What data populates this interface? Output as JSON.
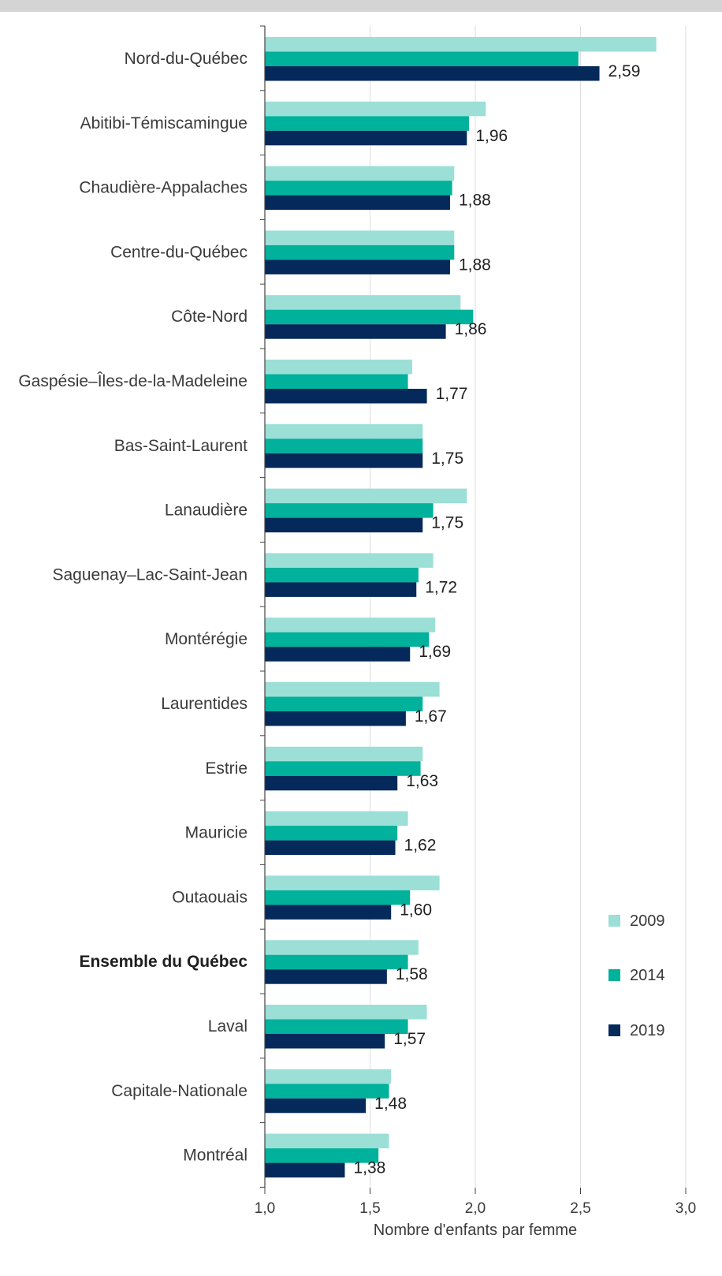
{
  "chart_data": {
    "type": "bar",
    "orientation": "horizontal",
    "xlabel": "Nombre d'enfants par femme",
    "xlim": [
      1.0,
      3.0
    ],
    "x_ticks": [
      "1,0",
      "1,5",
      "2,0",
      "2,5",
      "3,0"
    ],
    "grid": true,
    "legend_position": "bottom-right",
    "categories": [
      "Nord-du-Québec",
      "Abitibi-Témiscamingue",
      "Chaudière-Appalaches",
      "Centre-du-Québec",
      "Côte-Nord",
      "Gaspésie–Îles-de-la-Madeleine",
      "Bas-Saint-Laurent",
      "Lanaudière",
      "Saguenay–Lac-Saint-Jean",
      "Montérégie",
      "Laurentides",
      "Estrie",
      "Mauricie",
      "Outaouais",
      "Ensemble du Québec",
      "Laval",
      "Capitale-Nationale",
      "Montréal"
    ],
    "highlighted_category": "Ensemble du Québec",
    "series": [
      {
        "name": "2009",
        "color": "#9bdfd6",
        "values": [
          2.86,
          2.05,
          1.9,
          1.9,
          1.93,
          1.7,
          1.75,
          1.96,
          1.8,
          1.81,
          1.83,
          1.75,
          1.68,
          1.83,
          1.73,
          1.77,
          1.6,
          1.59
        ]
      },
      {
        "name": "2014",
        "color": "#00b19b",
        "values": [
          2.49,
          1.97,
          1.89,
          1.9,
          1.99,
          1.68,
          1.75,
          1.8,
          1.73,
          1.78,
          1.75,
          1.74,
          1.63,
          1.69,
          1.68,
          1.68,
          1.59,
          1.54
        ]
      },
      {
        "name": "2019",
        "color": "#04295a",
        "values": [
          2.59,
          1.96,
          1.88,
          1.88,
          1.86,
          1.77,
          1.75,
          1.75,
          1.72,
          1.69,
          1.67,
          1.63,
          1.62,
          1.6,
          1.58,
          1.57,
          1.48,
          1.38
        ]
      }
    ],
    "value_labels": [
      "2,59",
      "1,96",
      "1,88",
      "1,88",
      "1,86",
      "1,77",
      "1,75",
      "1,75",
      "1,72",
      "1,69",
      "1,67",
      "1,63",
      "1,62",
      "1,60",
      "1,58",
      "1,57",
      "1,48",
      "1,38"
    ]
  }
}
